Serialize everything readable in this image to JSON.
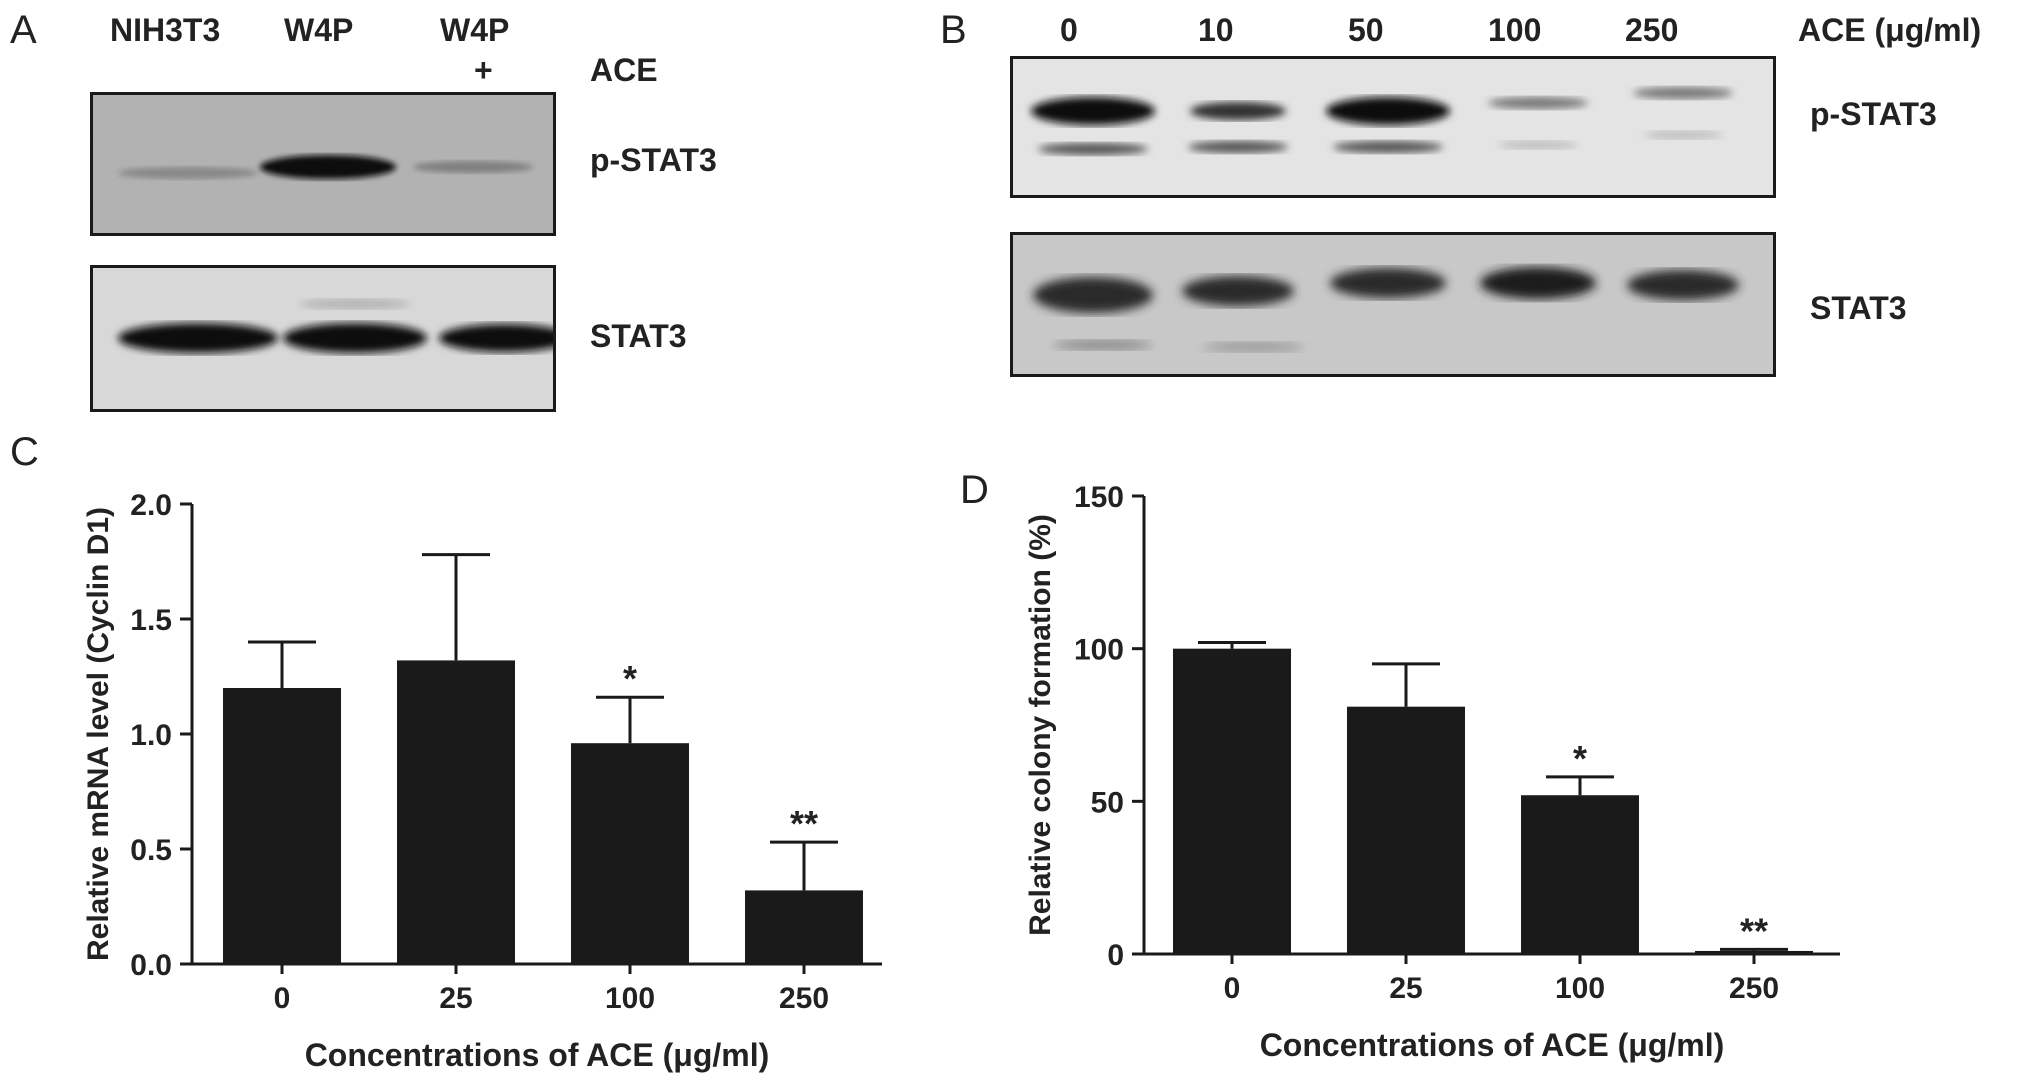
{
  "panelA": {
    "letter": "A",
    "lanes": [
      "NIH3T3",
      "W4P",
      "W4P",
      "+"
    ],
    "treatment_label": "ACE",
    "blot_labels": [
      "p-STAT3",
      "STAT3"
    ]
  },
  "panelB": {
    "letter": "B",
    "lanes": [
      "0",
      "10",
      "50",
      "100",
      "250"
    ],
    "unit_label": "ACE (μg/ml)",
    "blot_labels": [
      "p-STAT3",
      "STAT3"
    ]
  },
  "chart_data": [
    {
      "panel": "C",
      "type": "bar",
      "categories": [
        "0",
        "25",
        "100",
        "250"
      ],
      "values": [
        1.2,
        1.32,
        0.96,
        0.32
      ],
      "errors": [
        0.2,
        0.46,
        0.2,
        0.21
      ],
      "significance": [
        "",
        "",
        "*",
        "**"
      ],
      "xlabel": "Concentrations of ACE (μg/ml)",
      "ylabel": "Relative mRNA level (Cyclin D1)",
      "ylim": [
        0,
        2.0
      ],
      "yticks": [
        "0.0",
        "0.5",
        "1.0",
        "1.5",
        "2.0"
      ],
      "ytick_values": [
        0,
        0.5,
        1.0,
        1.5,
        2.0
      ],
      "bar_color": "#1a1a1a"
    },
    {
      "panel": "D",
      "type": "bar",
      "categories": [
        "0",
        "25",
        "100",
        "250"
      ],
      "values": [
        100,
        81,
        52,
        1
      ],
      "errors": [
        2,
        14,
        6,
        0.5
      ],
      "significance": [
        "",
        "",
        "*",
        "**"
      ],
      "xlabel": "Concentrations of ACE (μg/ml)",
      "ylabel": "Relative colony formation (%)",
      "ylim": [
        0,
        150
      ],
      "yticks": [
        "0",
        "50",
        "100",
        "150"
      ],
      "ytick_values": [
        0,
        50,
        100,
        150
      ],
      "bar_color": "#1a1a1a"
    }
  ]
}
